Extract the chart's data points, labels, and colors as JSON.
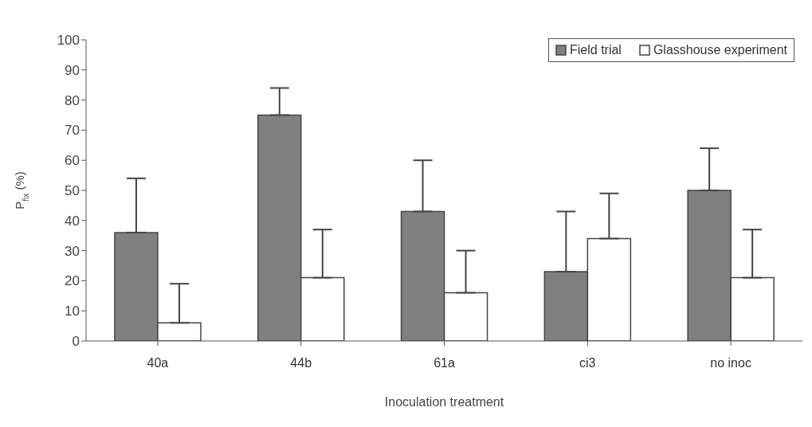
{
  "chart_data": {
    "type": "bar",
    "xlabel": "Inoculation treatment",
    "ylabel": "P$_{fix}$ (%)",
    "categories": [
      "40a",
      "44b",
      "61a",
      "ci3",
      "no inoc"
    ],
    "series": [
      {
        "name": "Field trial",
        "color": "#808080",
        "values": [
          36,
          75,
          43,
          23,
          50
        ],
        "errors": [
          [
            36,
            54
          ],
          [
            75,
            84
          ],
          [
            43,
            60
          ],
          [
            23,
            43
          ],
          [
            50,
            64
          ]
        ]
      },
      {
        "name": "Glasshouse experiment",
        "color": "#ffffff",
        "values": [
          6,
          21,
          16,
          34,
          21
        ],
        "errors": [
          [
            6,
            19
          ],
          [
            21,
            37
          ],
          [
            16,
            30
          ],
          [
            34,
            49
          ],
          [
            21,
            37
          ]
        ]
      }
    ],
    "ylim": [
      0,
      100
    ],
    "yticks": [
      0,
      10,
      20,
      30,
      40,
      50,
      60,
      70,
      80,
      90,
      100
    ],
    "grid": false,
    "legend": "top right"
  }
}
